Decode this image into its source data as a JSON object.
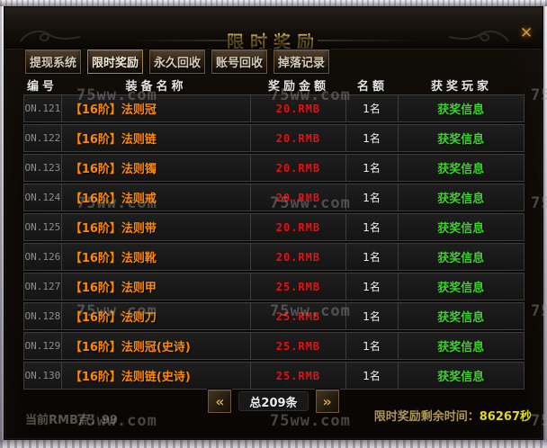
{
  "window": {
    "title": "限时奖励",
    "close_icon": "✕"
  },
  "tabs": [
    {
      "label": "提现系统",
      "active": false
    },
    {
      "label": "限时奖励",
      "active": true
    },
    {
      "label": "永久回收",
      "active": false
    },
    {
      "label": "账号回收",
      "active": false
    },
    {
      "label": "掉落记录",
      "active": false
    }
  ],
  "table": {
    "headers": [
      "编号",
      "装备名称",
      "奖励金额",
      "名额",
      "获奖玩家"
    ],
    "rows": [
      {
        "id": "ON.121",
        "name": "【16阶】法则冠",
        "amount": "20.RMB",
        "quota": "1名",
        "winner": "获奖信息"
      },
      {
        "id": "ON.122",
        "name": "【16阶】法则链",
        "amount": "20.RMB",
        "quota": "1名",
        "winner": "获奖信息"
      },
      {
        "id": "ON.123",
        "name": "【16阶】法则镯",
        "amount": "20.RMB",
        "quota": "1名",
        "winner": "获奖信息"
      },
      {
        "id": "ON.124",
        "name": "【16阶】法则戒",
        "amount": "20.RMB",
        "quota": "1名",
        "winner": "获奖信息"
      },
      {
        "id": "ON.125",
        "name": "【16阶】法则带",
        "amount": "20.RMB",
        "quota": "1名",
        "winner": "获奖信息"
      },
      {
        "id": "ON.126",
        "name": "【16阶】法则靴",
        "amount": "20.RMB",
        "quota": "1名",
        "winner": "获奖信息"
      },
      {
        "id": "ON.127",
        "name": "【16阶】法则甲",
        "amount": "25.RMB",
        "quota": "1名",
        "winner": "获奖信息"
      },
      {
        "id": "ON.128",
        "name": "【16阶】法则刀",
        "amount": "25.RMB",
        "quota": "1名",
        "winner": "获奖信息"
      },
      {
        "id": "ON.129",
        "name": "【16阶】法则冠(史诗)",
        "amount": "25.RMB",
        "quota": "1名",
        "winner": "获奖信息"
      },
      {
        "id": "ON.130",
        "name": "【16阶】法则链(史诗)",
        "amount": "25.RMB",
        "quota": "1名",
        "winner": "获奖信息"
      }
    ]
  },
  "pagination": {
    "prev_icon": "«",
    "total_label": "总209条",
    "next_icon": "»"
  },
  "footer": {
    "rmb_points": "当前RMB点：99",
    "timer_label": "限时奖励剩余时间：",
    "timer_value": "86267秒"
  },
  "watermark": {
    "text": "75ww.com"
  },
  "colors": {
    "title_gold": "#d8ab3e",
    "name_orange": "#ff8a00",
    "amount_red": "#e31212",
    "winner_green": "#3ed42c",
    "timer_yellow": "#ddd927",
    "tab_border_bronze": "#6f5a37"
  }
}
